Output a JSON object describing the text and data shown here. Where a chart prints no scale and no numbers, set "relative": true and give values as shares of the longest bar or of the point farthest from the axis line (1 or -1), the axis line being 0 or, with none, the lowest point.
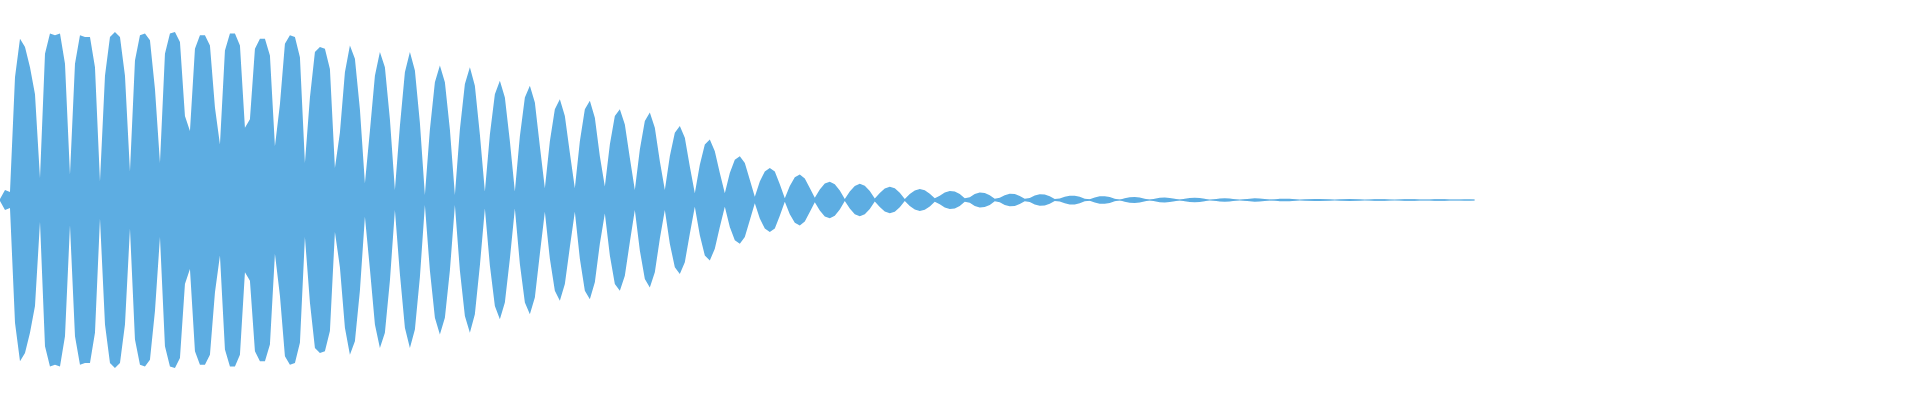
{
  "chart_data": {
    "type": "area",
    "relative": true,
    "categories": [
      null,
      null,
      null,
      null,
      null,
      null,
      null,
      null,
      null,
      null,
      null,
      null,
      null,
      null,
      null,
      null,
      null,
      null,
      null,
      null,
      null,
      null,
      null,
      null,
      null,
      null,
      null,
      null,
      null,
      null,
      null,
      null,
      null,
      null,
      null,
      null,
      null,
      null,
      null,
      null,
      null,
      null,
      null,
      null,
      null,
      null,
      null,
      null,
      null,
      null,
      null,
      null,
      null,
      null,
      null,
      null,
      null,
      null,
      null,
      null,
      null,
      null,
      null,
      null,
      null,
      null,
      null,
      null,
      null,
      null,
      null,
      null,
      null,
      null,
      null,
      null,
      null,
      null,
      null,
      null,
      null,
      null,
      null,
      null,
      null,
      null,
      null,
      null,
      null,
      null,
      null,
      null,
      null,
      null,
      null,
      null,
      null,
      null,
      null,
      null,
      null,
      null,
      null,
      null,
      null,
      null,
      null,
      null,
      null,
      null,
      null,
      null,
      null,
      null,
      null,
      null,
      null,
      null,
      null,
      null,
      null,
      null,
      null,
      null,
      null,
      null,
      null,
      null,
      null,
      null,
      null,
      null,
      null,
      null,
      null,
      null,
      null,
      null,
      null,
      null,
      null,
      null,
      null,
      null,
      null,
      null,
      null,
      null,
      null,
      null,
      null,
      null,
      null,
      null,
      null,
      null,
      null,
      null,
      null,
      null,
      null,
      null,
      null,
      null,
      null,
      null,
      null,
      null,
      null,
      null,
      null,
      null,
      null,
      null,
      null,
      null,
      null,
      null,
      null,
      null,
      null,
      null,
      null,
      null,
      null,
      null,
      null,
      null,
      null,
      null,
      null,
      null,
      null,
      null,
      null,
      null,
      null,
      null,
      null,
      null,
      null,
      null,
      null,
      null,
      null,
      null,
      null,
      null,
      null,
      null,
      null,
      null,
      null,
      null,
      null,
      null,
      null,
      null,
      null,
      null,
      null,
      null,
      null,
      null,
      null,
      null,
      null,
      null,
      null,
      null,
      null,
      null,
      null,
      null,
      null,
      null,
      null,
      null,
      null,
      null,
      null,
      null,
      null,
      null,
      null,
      null,
      null,
      null,
      null,
      null,
      null,
      null,
      null,
      null,
      null,
      null,
      null,
      null,
      null,
      null,
      null,
      null,
      null,
      null,
      null,
      null,
      null,
      null,
      null,
      null,
      null,
      null,
      null,
      null,
      null,
      null,
      null,
      null,
      null,
      null,
      null,
      null,
      null,
      null,
      null,
      null,
      null,
      null,
      null,
      null,
      null,
      null,
      null,
      null,
      null,
      null
    ],
    "series": [
      {
        "color": "#5dade2",
        "values": [
          0.006,
          0.06,
          0.048,
          0.73,
          0.96,
          0.91,
          0.79,
          0.63,
          0.13,
          0.87,
          0.99,
          0.98,
          0.99,
          0.81,
          0.15,
          0.81,
          0.98,
          0.97,
          0.97,
          0.79,
          0.11,
          0.74,
          0.97,
          1.0,
          0.97,
          0.74,
          0.17,
          0.83,
          0.98,
          0.99,
          0.95,
          0.66,
          0.22,
          0.87,
          0.99,
          1.0,
          0.94,
          0.5,
          0.41,
          0.9,
          0.98,
          0.98,
          0.92,
          0.55,
          0.33,
          0.89,
          0.99,
          0.99,
          0.92,
          0.43,
          0.48,
          0.9,
          0.96,
          0.96,
          0.86,
          0.32,
          0.57,
          0.93,
          0.98,
          0.97,
          0.85,
          0.22,
          0.61,
          0.88,
          0.91,
          0.9,
          0.78,
          0.19,
          0.4,
          0.76,
          0.92,
          0.84,
          0.54,
          0.1,
          0.41,
          0.74,
          0.88,
          0.79,
          0.48,
          0.06,
          0.44,
          0.76,
          0.88,
          0.77,
          0.46,
          0.03,
          0.42,
          0.7,
          0.8,
          0.7,
          0.42,
          0.03,
          0.42,
          0.69,
          0.79,
          0.68,
          0.39,
          0.05,
          0.39,
          0.63,
          0.71,
          0.61,
          0.35,
          0.05,
          0.38,
          0.61,
          0.68,
          0.58,
          0.32,
          0.07,
          0.35,
          0.54,
          0.6,
          0.5,
          0.28,
          0.07,
          0.35,
          0.54,
          0.59,
          0.49,
          0.26,
          0.08,
          0.33,
          0.5,
          0.54,
          0.45,
          0.25,
          0.06,
          0.3,
          0.47,
          0.52,
          0.43,
          0.23,
          0.06,
          0.26,
          0.4,
          0.44,
          0.37,
          0.2,
          0.04,
          0.21,
          0.33,
          0.36,
          0.29,
          0.16,
          0.04,
          0.16,
          0.24,
          0.26,
          0.22,
          0.12,
          0.02,
          0.11,
          0.17,
          0.19,
          0.17,
          0.094,
          0.01,
          0.084,
          0.136,
          0.152,
          0.128,
          0.071,
          0.013,
          0.063,
          0.098,
          0.109,
          0.094,
          0.056,
          0.006,
          0.051,
          0.084,
          0.097,
          0.085,
          0.053,
          0.009,
          0.041,
          0.069,
          0.079,
          0.07,
          0.043,
          0.006,
          0.035,
          0.056,
          0.065,
          0.058,
          0.038,
          0.01,
          0.025,
          0.045,
          0.054,
          0.051,
          0.035,
          0.011,
          0.016,
          0.035,
          0.044,
          0.042,
          0.029,
          0.008,
          0.013,
          0.029,
          0.037,
          0.035,
          0.024,
          0.007,
          0.012,
          0.027,
          0.034,
          0.033,
          0.022,
          0.006,
          0.009,
          0.02,
          0.026,
          0.026,
          0.019,
          0.007,
          0.005,
          0.015,
          0.022,
          0.022,
          0.018,
          0.008,
          0.002,
          0.011,
          0.016,
          0.018,
          0.015,
          0.008,
          0.001,
          0.008,
          0.013,
          0.015,
          0.012,
          0.007,
          0.001,
          0.008,
          0.012,
          0.014,
          0.012,
          0.007,
          0,
          0.005,
          0.009,
          0.011,
          0.009,
          0.005,
          0,
          0.005,
          0.008,
          0.01,
          0.009,
          0.006,
          0.002,
          0.003,
          0.007,
          0.008,
          0.007,
          0.004,
          0,
          0.003,
          0.005,
          0.006,
          0.006,
          0.005,
          0.003,
          0,
          0.003,
          0.005,
          0.006,
          0.005,
          0.003,
          0,
          0.002,
          0.004,
          0.004,
          0.004,
          0.002,
          0,
          0.002,
          0.004,
          0.004,
          0.004,
          0.002,
          0.001,
          0.002,
          0.004,
          0.004,
          0.004,
          0.002,
          0.001,
          0.001,
          0.003,
          0.003,
          0.001
        ]
      },
      {
        "color": "#5dade2",
        "values": [
          -0.006,
          -0.06,
          -0.048,
          -0.73,
          -0.96,
          -0.91,
          -0.79,
          -0.63,
          -0.13,
          -0.87,
          -0.99,
          -0.98,
          -0.99,
          -0.81,
          -0.15,
          -0.81,
          -0.98,
          -0.97,
          -0.97,
          -0.79,
          -0.11,
          -0.74,
          -0.97,
          -1.0,
          -0.97,
          -0.74,
          -0.17,
          -0.83,
          -0.98,
          -0.99,
          -0.95,
          -0.66,
          -0.22,
          -0.87,
          -0.99,
          -1.0,
          -0.94,
          -0.5,
          -0.41,
          -0.9,
          -0.98,
          -0.98,
          -0.92,
          -0.55,
          -0.33,
          -0.89,
          -0.99,
          -0.99,
          -0.92,
          -0.43,
          -0.48,
          -0.9,
          -0.96,
          -0.96,
          -0.86,
          -0.32,
          -0.57,
          -0.93,
          -0.98,
          -0.97,
          -0.85,
          -0.22,
          -0.61,
          -0.88,
          -0.91,
          -0.9,
          -0.78,
          -0.19,
          -0.4,
          -0.76,
          -0.92,
          -0.84,
          -0.54,
          -0.1,
          -0.41,
          -0.74,
          -0.88,
          -0.79,
          -0.48,
          -0.06,
          -0.44,
          -0.76,
          -0.88,
          -0.77,
          -0.46,
          -0.03,
          -0.42,
          -0.7,
          -0.8,
          -0.7,
          -0.42,
          -0.03,
          -0.42,
          -0.69,
          -0.79,
          -0.68,
          -0.39,
          -0.05,
          -0.39,
          -0.63,
          -0.71,
          -0.61,
          -0.35,
          -0.05,
          -0.38,
          -0.61,
          -0.68,
          -0.58,
          -0.32,
          -0.07,
          -0.35,
          -0.54,
          -0.6,
          -0.5,
          -0.28,
          -0.07,
          -0.35,
          -0.54,
          -0.59,
          -0.49,
          -0.26,
          -0.08,
          -0.33,
          -0.5,
          -0.54,
          -0.45,
          -0.25,
          -0.06,
          -0.3,
          -0.47,
          -0.52,
          -0.43,
          -0.23,
          -0.06,
          -0.26,
          -0.4,
          -0.44,
          -0.37,
          -0.2,
          -0.04,
          -0.21,
          -0.33,
          -0.36,
          -0.29,
          -0.16,
          -0.04,
          -0.16,
          -0.24,
          -0.26,
          -0.22,
          -0.12,
          -0.02,
          -0.11,
          -0.17,
          -0.19,
          -0.17,
          -0.094,
          -0.01,
          -0.084,
          -0.136,
          -0.152,
          -0.128,
          -0.071,
          -0.013,
          -0.063,
          -0.098,
          -0.109,
          -0.094,
          -0.056,
          -0.006,
          -0.051,
          -0.084,
          -0.097,
          -0.085,
          -0.053,
          -0.009,
          -0.041,
          -0.069,
          -0.079,
          -0.07,
          -0.043,
          -0.006,
          -0.035,
          -0.056,
          -0.065,
          -0.058,
          -0.038,
          -0.01,
          -0.025,
          -0.045,
          -0.054,
          -0.051,
          -0.035,
          -0.011,
          -0.016,
          -0.035,
          -0.044,
          -0.042,
          -0.029,
          -0.008,
          -0.013,
          -0.029,
          -0.037,
          -0.035,
          -0.024,
          -0.007,
          -0.012,
          -0.027,
          -0.034,
          -0.033,
          -0.022,
          -0.006,
          -0.009,
          -0.02,
          -0.026,
          -0.026,
          -0.019,
          -0.007,
          -0.005,
          -0.015,
          -0.022,
          -0.022,
          -0.018,
          -0.008,
          -0.002,
          -0.011,
          -0.016,
          -0.018,
          -0.015,
          -0.008,
          -0.001,
          -0.008,
          -0.013,
          -0.015,
          -0.012,
          -0.007,
          -0.001,
          -0.008,
          -0.012,
          -0.014,
          -0.012,
          -0.007,
          0,
          -0.005,
          -0.009,
          -0.011,
          -0.009,
          -0.005,
          0,
          -0.005,
          -0.008,
          -0.01,
          -0.009,
          -0.006,
          -0.002,
          -0.003,
          -0.007,
          -0.008,
          -0.007,
          -0.004,
          0,
          -0.003,
          -0.005,
          -0.006,
          -0.006,
          -0.005,
          -0.003,
          0,
          -0.003,
          -0.005,
          -0.006,
          -0.005,
          -0.003,
          0,
          -0.002,
          -0.004,
          -0.004,
          -0.004,
          -0.002,
          0,
          -0.002,
          -0.004,
          -0.004,
          -0.004,
          -0.002,
          -0.001,
          -0.002,
          -0.004,
          -0.004,
          -0.004,
          -0.002,
          -0.001,
          -0.001,
          -0.003,
          -0.003,
          -0.001
        ]
      }
    ]
  }
}
